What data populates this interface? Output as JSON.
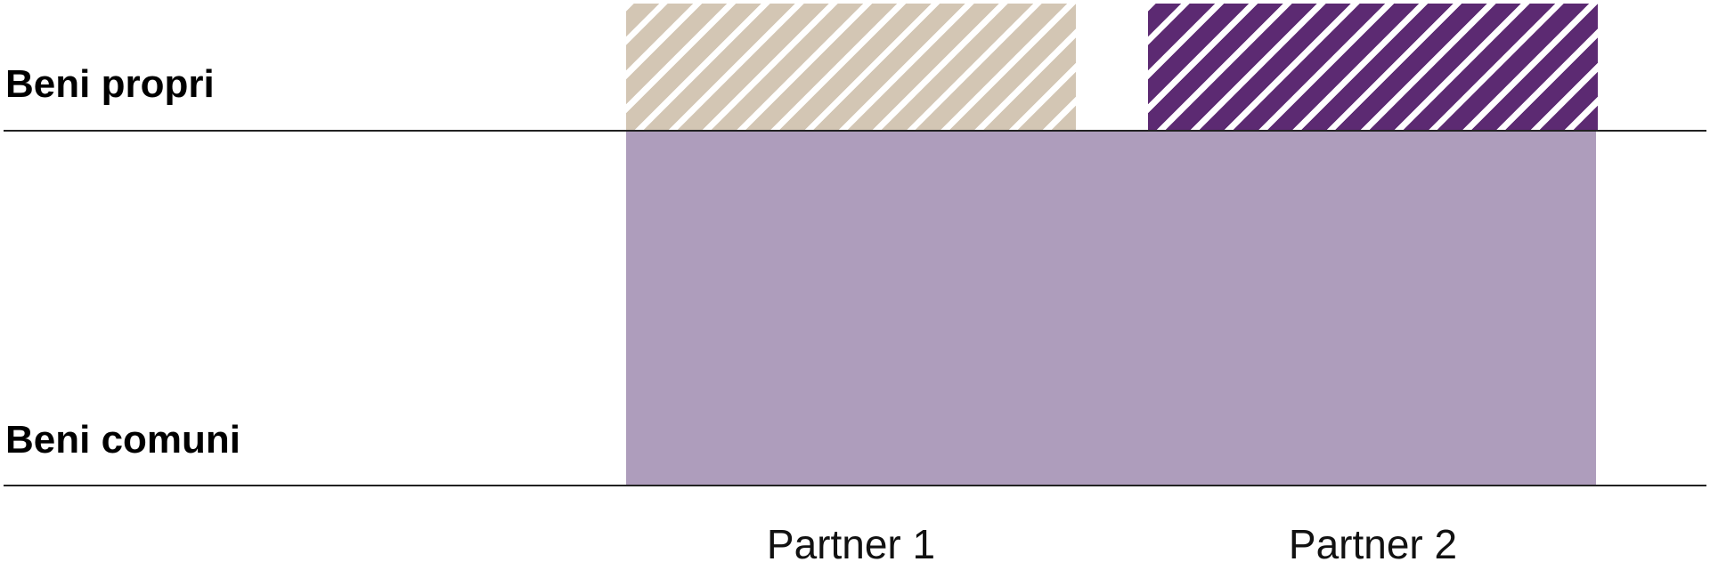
{
  "rows": {
    "own_assets": "Beni propri",
    "common_assets": "Beni comuni"
  },
  "columns": [
    "Partner 1",
    "Partner 2"
  ],
  "colors": {
    "partner1_own": "#d3c6b4",
    "partner2_own": "#5c2a72",
    "common": "#ae9dbc"
  }
}
